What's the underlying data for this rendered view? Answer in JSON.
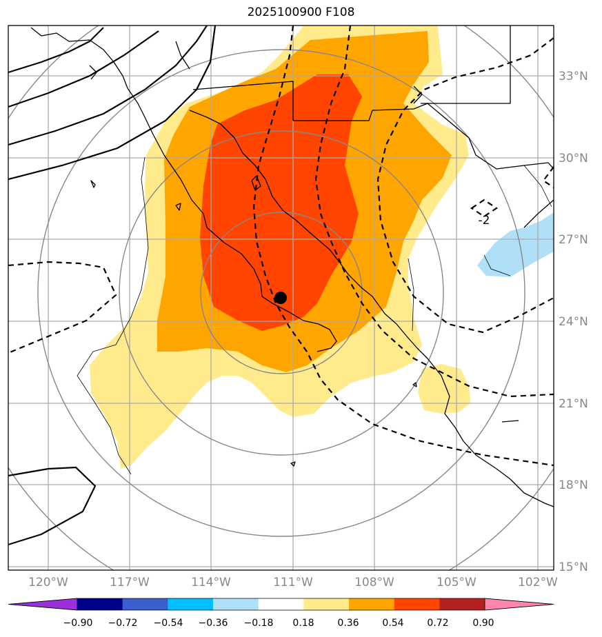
{
  "title": "2025100900 F108",
  "map": {
    "lat_labels": [
      "33°N",
      "30°N",
      "27°N",
      "24°N",
      "21°N",
      "18°N",
      "15°N"
    ],
    "lon_labels": [
      "120°W",
      "117°W",
      "114°W",
      "111°W",
      "108°W",
      "105°W",
      "102°W"
    ],
    "contour_label": "-2",
    "center_marker": {
      "lon": -111.5,
      "lat": 24.8
    }
  },
  "colorbar": {
    "ticks": [
      "−0.90",
      "−0.72",
      "−0.54",
      "−0.36",
      "−0.18",
      "0.18",
      "0.36",
      "0.54",
      "0.72",
      "0.90"
    ],
    "colors": [
      "#9b30d9",
      "#00008b",
      "#3a5fcd",
      "#00bfff",
      "#b0e0f8",
      "#ffffff",
      "#ffeb8c",
      "#ffa500",
      "#ff4500",
      "#b22222",
      "#ff85b0"
    ]
  }
}
